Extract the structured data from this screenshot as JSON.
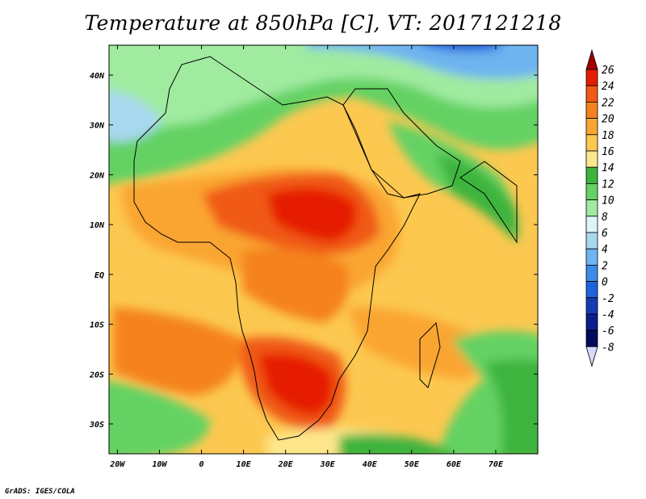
{
  "title": "Temperature at 850hPa [C], VT: 2017121218",
  "credit": "GrADS: IGES/COLA",
  "map": {
    "lon_range": [
      -22,
      80
    ],
    "lat_range": [
      -36,
      46
    ],
    "lat_ticks": [
      "40N",
      "30N",
      "20N",
      "10N",
      "EQ",
      "10S",
      "20S",
      "30S"
    ],
    "lon_ticks": [
      "20W",
      "10W",
      "0",
      "10E",
      "20E",
      "30E",
      "40E",
      "50E",
      "60E",
      "70E"
    ]
  },
  "colorbar": {
    "levels": [
      "26",
      "24",
      "22",
      "20",
      "18",
      "16",
      "14",
      "12",
      "10",
      "8",
      "6",
      "4",
      "2",
      "0",
      "-2",
      "-4",
      "-6",
      "-8"
    ],
    "colors": [
      "#a00000",
      "#e61e00",
      "#f05a14",
      "#f5821e",
      "#faa532",
      "#fcc850",
      "#fde68c",
      "#3cb43c",
      "#64d264",
      "#a0eba0",
      "#dcf5f5",
      "#a8d8f0",
      "#6eb4f0",
      "#3c8ce6",
      "#1e64dc",
      "#143cb4",
      "#0a1e8c",
      "#050a5a",
      "#d8d8ff"
    ]
  }
}
